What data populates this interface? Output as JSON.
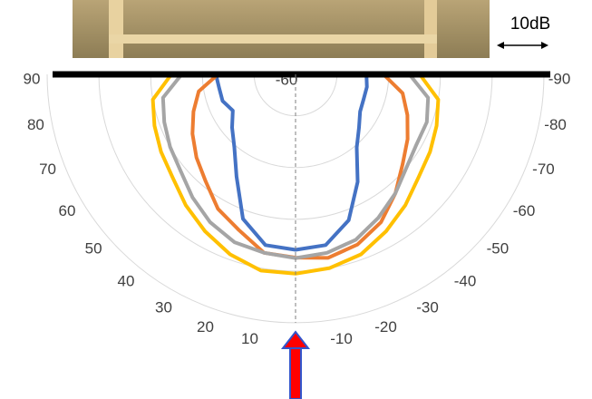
{
  "chart_data": {
    "type": "polar-line",
    "theta": [
      90,
      80,
      70,
      60,
      50,
      40,
      30,
      20,
      10,
      0,
      -10,
      -20,
      -30,
      -40,
      -50,
      -60,
      -70,
      -80,
      -90
    ],
    "thetaticks": [
      90,
      80,
      70,
      60,
      50,
      40,
      30,
      20,
      10,
      -10,
      -20,
      -30,
      -40,
      -50,
      -60,
      -70,
      -80,
      -90
    ],
    "rlim": [
      -68,
      -20
    ],
    "rticks": [
      -60
    ],
    "rgrid": [
      -60,
      -50,
      -40,
      -30,
      -20
    ],
    "annotation": "10dB",
    "series": [
      {
        "color": "#4472c4",
        "values": [
          -52.6,
          -53,
          -53,
          -54,
          -52,
          -49.6,
          -45.2,
          -38.3,
          -34.5,
          -34.1,
          -34.5,
          -38,
          -44,
          -49.6,
          -52,
          -53.6,
          -54,
          -54,
          -54.3
        ]
      },
      {
        "color": "#ed7d31",
        "values": [
          -53,
          -49,
          -47,
          -45,
          -43,
          -41,
          -38,
          -36,
          -33,
          -32.6,
          -32,
          -33,
          -35,
          -38,
          -41,
          -43,
          -45,
          -47,
          -51
        ]
      },
      {
        "color": "#a5a5a5",
        "values": [
          -46,
          -42,
          -41,
          -40,
          -39,
          -37,
          -35,
          -33.5,
          -33,
          -32.5,
          -33,
          -34,
          -36,
          -38,
          -40,
          -41,
          -41,
          -42,
          -46
        ]
      },
      {
        "color": "#ffc000",
        "values": [
          -44,
          -40,
          -39,
          -38,
          -37,
          -35,
          -33,
          -31,
          -29.5,
          -29.5,
          -30,
          -31,
          -33,
          -35,
          -37,
          -38,
          -39,
          -40,
          -44
        ]
      }
    ]
  }
}
